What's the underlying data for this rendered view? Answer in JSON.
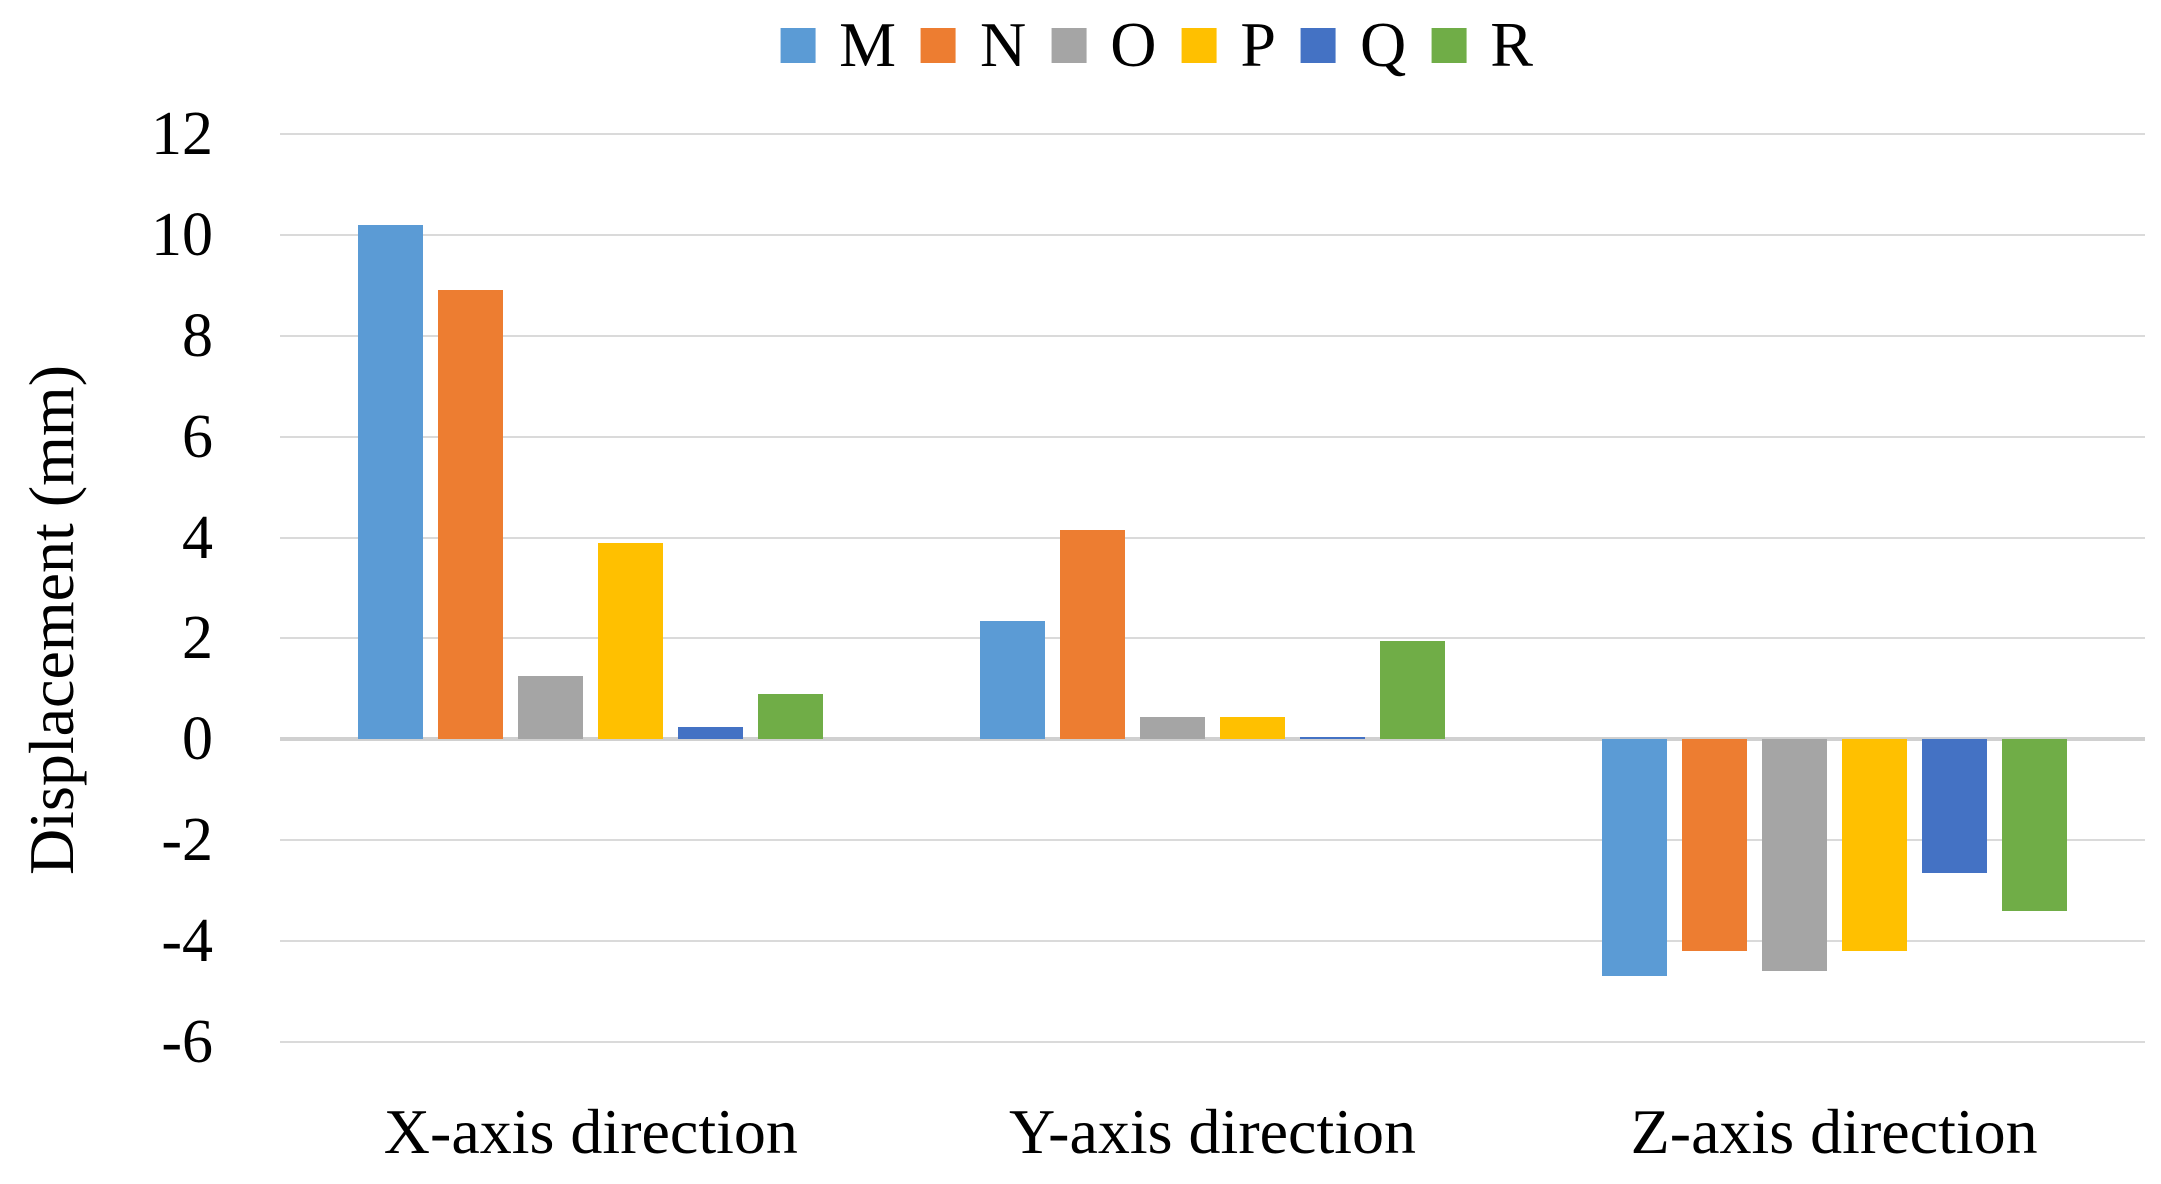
{
  "figure": {
    "background": "#ffffff",
    "text_color": "#000000"
  },
  "legend": {
    "position": "top"
  },
  "chart_data": {
    "type": "bar",
    "title": "",
    "xlabel": "",
    "ylabel": "Displacement (mm)",
    "categories": [
      "X-axis direction",
      "Y-axis direction",
      "Z-axis direction"
    ],
    "series": [
      {
        "name": "M",
        "color": "#5B9BD5",
        "values": [
          10.2,
          2.35,
          -4.7
        ]
      },
      {
        "name": "N",
        "color": "#ED7D31",
        "values": [
          8.9,
          4.15,
          -4.2
        ]
      },
      {
        "name": "O",
        "color": "#A5A5A5",
        "values": [
          1.25,
          0.45,
          -4.6
        ]
      },
      {
        "name": "P",
        "color": "#FFC000",
        "values": [
          3.9,
          0.45,
          -4.2
        ]
      },
      {
        "name": "Q",
        "color": "#4472C4",
        "values": [
          0.25,
          0.05,
          -2.65
        ]
      },
      {
        "name": "R",
        "color": "#70AD47",
        "values": [
          0.9,
          1.95,
          -3.4
        ]
      }
    ],
    "ylim": [
      -6,
      12
    ],
    "yticks": [
      12,
      10,
      8,
      6,
      4,
      2,
      0,
      -2,
      -4,
      -6
    ],
    "grid": true,
    "legend_position": "top",
    "gridline_color": "#DADADA",
    "zeroline_color": "#D0D0D0"
  }
}
